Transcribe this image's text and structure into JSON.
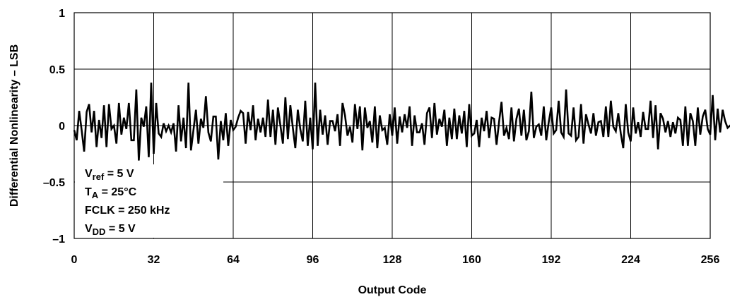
{
  "chart_data": {
    "type": "line",
    "title": "",
    "xlabel": "Output Code",
    "ylabel": "Differential Nonlinearity – LSB",
    "xlim": [
      0,
      256
    ],
    "ylim": [
      -1,
      1
    ],
    "xticks": [
      "0",
      "32",
      "64",
      "96",
      "128",
      "160",
      "192",
      "224",
      "256"
    ],
    "yticks": [
      "1",
      "0.5",
      "0",
      "–0.5",
      "–1"
    ],
    "grid": true,
    "legend": "none",
    "line_color": "#000000",
    "annotations": [
      {
        "main": "V",
        "sub": "ref",
        "rest": " = 5 V"
      },
      {
        "main": "T",
        "sub": "A",
        "rest": " = 25°C"
      },
      {
        "main": "FCLK = 250 kHz",
        "sub": "",
        "rest": ""
      },
      {
        "main": "V",
        "sub": "DD",
        "rest": " = 5 V"
      }
    ],
    "series": [
      {
        "x_start": 0,
        "x_step": 1,
        "values": [
          -0.04,
          -0.13,
          0.13,
          -0.04,
          -0.23,
          0.12,
          0.19,
          -0.06,
          0.13,
          -0.19,
          0.05,
          -0.11,
          0.18,
          -0.19,
          0.19,
          -0.03,
          0.0,
          -0.16,
          0.2,
          -0.08,
          0.07,
          -0.03,
          0.2,
          -0.13,
          -0.13,
          0.32,
          -0.31,
          0.07,
          -0.01,
          0.17,
          -0.28,
          0.38,
          -0.25,
          0.2,
          -0.07,
          -0.1,
          0.02,
          -0.05,
          0.0,
          -0.06,
          0.02,
          -0.23,
          0.18,
          -0.14,
          0.07,
          -0.2,
          0.38,
          -0.22,
          -0.04,
          0.14,
          -0.16,
          0.06,
          -0.02,
          0.26,
          -0.06,
          -0.14,
          0.08,
          0.08,
          -0.3,
          0.04,
          -0.13,
          0.11,
          -0.18,
          0.05,
          -0.04,
          -0.01,
          0.07,
          0.13,
          0.11,
          -0.16,
          0.12,
          -0.04,
          0.18,
          -0.13,
          0.06,
          -0.06,
          0.07,
          -0.1,
          0.23,
          -0.1,
          0.14,
          -0.17,
          0.16,
          0.0,
          -0.16,
          0.25,
          -0.12,
          0.18,
          -0.02,
          -0.2,
          0.14,
          -0.03,
          -0.14,
          0.22,
          -0.18,
          0.07,
          -0.21,
          0.38,
          -0.18,
          0.14,
          -0.08,
          0.09,
          -0.17,
          0.04,
          0.04,
          -0.05,
          0.1,
          -0.18,
          0.2,
          0.09,
          -0.09,
          -0.01,
          -0.15,
          0.19,
          -0.03,
          0.17,
          -0.22,
          0.16,
          -0.02,
          0.04,
          -0.15,
          0.17,
          -0.2,
          0.09,
          -0.04,
          -0.02,
          -0.17,
          0.1,
          -0.09,
          0.16,
          -0.16,
          0.08,
          -0.06,
          0.1,
          -0.02,
          0.17,
          -0.18,
          0.09,
          -0.06,
          -0.06,
          0.02,
          -0.17,
          0.11,
          0.16,
          -0.11,
          0.2,
          -0.08,
          0.06,
          -0.01,
          0.14,
          -0.18,
          0.07,
          -0.12,
          0.15,
          -0.12,
          0.09,
          -0.07,
          0.13,
          -0.19,
          0.19,
          -0.09,
          -0.07,
          0.05,
          -0.19,
          0.07,
          -0.05,
          0.13,
          -0.11,
          0.07,
          0.06,
          -0.17,
          0.03,
          0.21,
          -0.09,
          -0.02,
          -0.12,
          0.16,
          -0.14,
          0.06,
          0.15,
          -0.09,
          0.14,
          -0.13,
          -0.05,
          0.3,
          -0.11,
          -0.01,
          0.01,
          -0.09,
          0.17,
          -0.13,
          0.03,
          0.16,
          -0.07,
          -0.04,
          0.22,
          -0.06,
          -0.1,
          0.32,
          -0.07,
          -0.09,
          0.16,
          -0.13,
          -0.1,
          0.19,
          -0.16,
          0.1,
          0.01,
          -0.07,
          0.11,
          -0.09,
          0.03,
          0.04,
          -0.1,
          0.17,
          -0.1,
          0.22,
          -0.01,
          -0.05,
          0.11,
          -0.07,
          -0.2,
          0.19,
          -0.06,
          -0.14,
          0.16,
          -0.07,
          0.03,
          -0.1,
          0.12,
          -0.03,
          -0.03,
          0.22,
          -0.11,
          0.18,
          -0.21,
          0.11,
          0.06,
          -0.06,
          0.04,
          -0.1,
          0.03,
          -0.07,
          0.07,
          0.05,
          -0.18,
          0.17,
          -0.18,
          0.11,
          0.04,
          -0.18,
          0.16,
          -0.08,
          0.08,
          0.14,
          -0.03,
          -0.08,
          0.27,
          -0.13,
          0.15,
          -0.06,
          0.14,
          0.04,
          -0.02,
          0.0,
          -0.03,
          0.1,
          -0.15,
          0.05,
          0.0,
          -0.05,
          0.32,
          -0.2,
          0.09,
          -0.03,
          0.14,
          -0.06
        ]
      }
    ]
  }
}
